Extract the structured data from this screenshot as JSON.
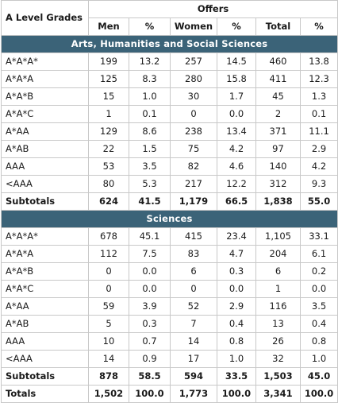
{
  "header": {
    "row_label": "A Level Grades",
    "group": "Offers",
    "columns": [
      "Men",
      "%",
      "Women",
      "%",
      "Total",
      "%"
    ]
  },
  "sections": [
    {
      "title": "Arts, Humanities and Social Sciences",
      "rows": [
        [
          "A*A*A*",
          "199",
          "13.2",
          "257",
          "14.5",
          "460",
          "13.8"
        ],
        [
          "A*A*A",
          "125",
          "8.3",
          "280",
          "15.8",
          "411",
          "12.3"
        ],
        [
          "A*A*B",
          "15",
          "1.0",
          "30",
          "1.7",
          "45",
          "1.3"
        ],
        [
          "A*A*C",
          "1",
          "0.1",
          "0",
          "0.0",
          "2",
          "0.1"
        ],
        [
          "A*AA",
          "129",
          "8.6",
          "238",
          "13.4",
          "371",
          "11.1"
        ],
        [
          "A*AB",
          "22",
          "1.5",
          "75",
          "4.2",
          "97",
          "2.9"
        ],
        [
          "AAA",
          "53",
          "3.5",
          "82",
          "4.6",
          "140",
          "4.2"
        ],
        [
          "<AAA",
          "80",
          "5.3",
          "217",
          "12.2",
          "312",
          "9.3"
        ]
      ],
      "subtotal": [
        "Subtotals",
        "624",
        "41.5",
        "1,179",
        "66.5",
        "1,838",
        "55.0"
      ]
    },
    {
      "title": "Sciences",
      "rows": [
        [
          "A*A*A*",
          "678",
          "45.1",
          "415",
          "23.4",
          "1,105",
          "33.1"
        ],
        [
          "A*A*A",
          "112",
          "7.5",
          "83",
          "4.7",
          "204",
          "6.1"
        ],
        [
          "A*A*B",
          "0",
          "0.0",
          "6",
          "0.3",
          "6",
          "0.2"
        ],
        [
          "A*A*C",
          "0",
          "0.0",
          "0",
          "0.0",
          "1",
          "0.0"
        ],
        [
          "A*AA",
          "59",
          "3.9",
          "52",
          "2.9",
          "116",
          "3.5"
        ],
        [
          "A*AB",
          "5",
          "0.3",
          "7",
          "0.4",
          "13",
          "0.4"
        ],
        [
          "AAA",
          "10",
          "0.7",
          "14",
          "0.8",
          "26",
          "0.8"
        ],
        [
          "<AAA",
          "14",
          "0.9",
          "17",
          "1.0",
          "32",
          "1.0"
        ]
      ],
      "subtotal": [
        "Subtotals",
        "878",
        "58.5",
        "594",
        "33.5",
        "1,503",
        "45.0"
      ]
    }
  ],
  "totals": [
    "Totals",
    "1,502",
    "100.0",
    "1,773",
    "100.0",
    "3,341",
    "100.0"
  ],
  "colors": {
    "section_header_bg": "#3b6378",
    "section_header_text": "#ffffff",
    "border": "#c8c8c8"
  }
}
